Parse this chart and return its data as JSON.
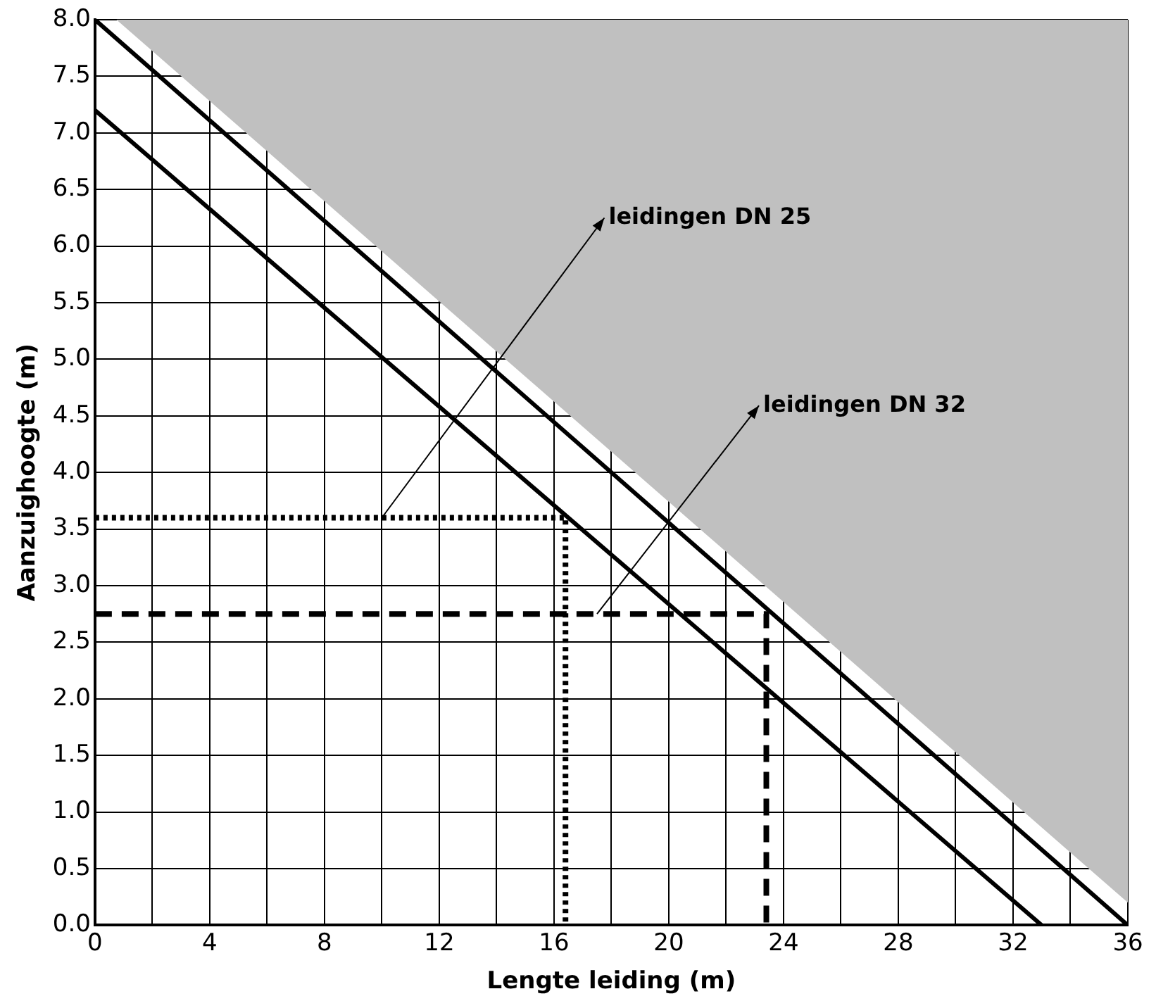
{
  "chart_data": {
    "type": "line",
    "xlabel": "Lengte leiding (m)",
    "ylabel": "Aanzuighoogte (m)",
    "xlim": [
      0,
      36
    ],
    "ylim": [
      0,
      8
    ],
    "xticks": [
      0,
      {
        "value": 2,
        "label": null
      },
      4,
      {
        "value": 6,
        "label": null
      },
      8,
      {
        "value": 10,
        "label": null
      },
      12,
      {
        "value": 14,
        "label": null
      },
      16,
      {
        "value": 18,
        "label": null
      },
      20,
      {
        "value": 22,
        "label": null
      },
      24,
      {
        "value": 26,
        "label": null
      },
      28,
      {
        "value": 30,
        "label": null
      },
      32,
      {
        "value": 34,
        "label": null
      },
      36
    ],
    "yticks": [
      {
        "value": 0,
        "label": "0.0"
      },
      0.5,
      {
        "value": 1,
        "label": "1.0"
      },
      1.5,
      {
        "value": 2,
        "label": "2.0"
      },
      2.5,
      {
        "value": 3,
        "label": "3.0"
      },
      3.5,
      {
        "value": 4,
        "label": "4.0"
      },
      4.5,
      {
        "value": 5,
        "label": "5.0"
      },
      5.5,
      {
        "value": 6,
        "label": "6.0"
      },
      6.5,
      {
        "value": 7,
        "label": "7.0"
      },
      7.5,
      {
        "value": 8,
        "label": "8.0"
      }
    ],
    "grid": true,
    "legend": false,
    "series": [
      {
        "type": "area",
        "color": "#c0c0c0",
        "x": [
          0.75,
          36
        ],
        "values": [
          8,
          0.2
        ]
      },
      {
        "type": "line",
        "color": "#000000",
        "x": [
          0,
          36
        ],
        "values": [
          8,
          0
        ],
        "line_style": "solid"
      },
      {
        "type": "line",
        "color": "#000000",
        "x": [
          0,
          33
        ],
        "values": [
          7.2,
          0
        ],
        "line_style": "solid"
      },
      {
        "type": "line",
        "color": "#000000",
        "x": [
          0,
          16.4,
          16.4
        ],
        "values": [
          3.6,
          3.6,
          0
        ],
        "line_style": "dotted"
      },
      {
        "type": "line",
        "color": "#000000",
        "x": [
          0,
          23.4,
          23.4
        ],
        "values": [
          2.75,
          2.75,
          0
        ],
        "line_style": "dashed"
      }
    ],
    "annotations": [
      {
        "text": "leidingen DN 25",
        "x": 10,
        "y": 3.6
      },
      {
        "text": "leidingen DN 32",
        "x": 17.5,
        "y": 2.75
      }
    ]
  }
}
